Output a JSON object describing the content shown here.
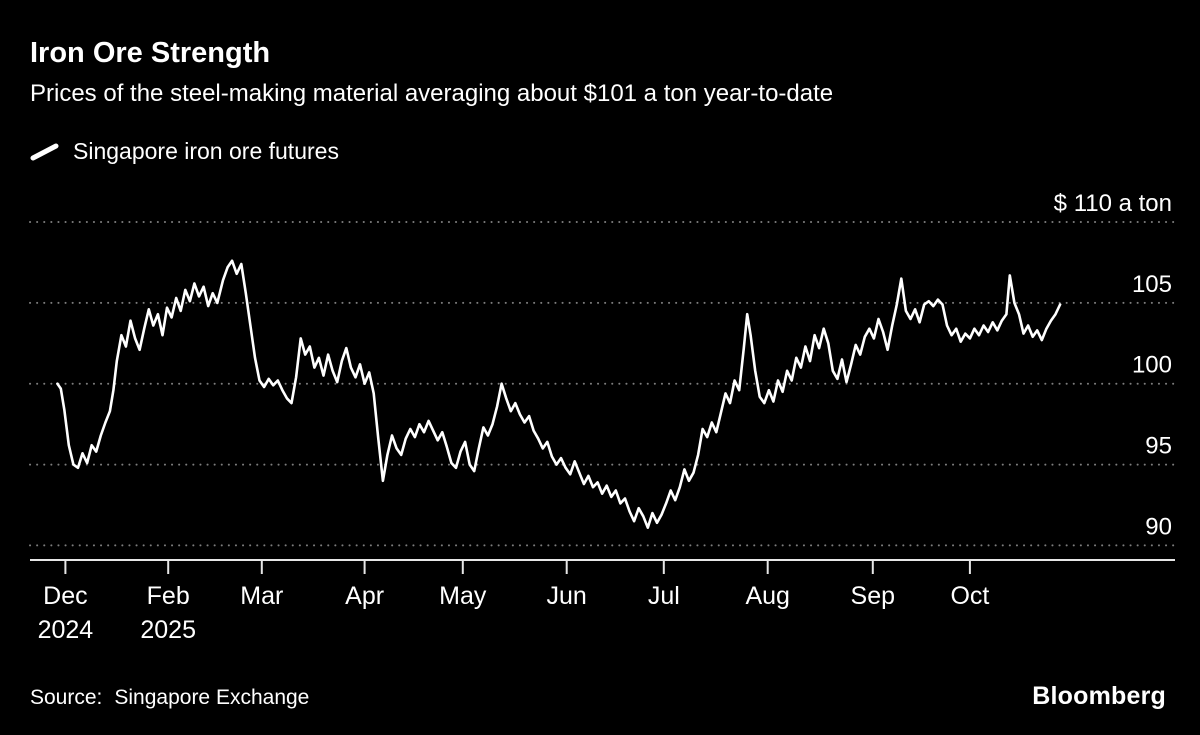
{
  "header": {
    "title": "Iron Ore Strength",
    "subtitle": "Prices of the steel-making material averaging about $101 a ton year-to-date"
  },
  "legend": {
    "series_label": "Singapore iron ore futures",
    "marker_icon": "series-line-icon",
    "line_color": "#ffffff"
  },
  "footer": {
    "source_label": "Source:",
    "source_value": "Singapore Exchange",
    "logo": "Bloomberg"
  },
  "colors": {
    "background": "#000000",
    "line": "#ffffff",
    "grid": "#7d7d7d",
    "axis": "#e6e6e6",
    "text": "#ffffff"
  },
  "chart_data": {
    "type": "line",
    "title": "Iron Ore Strength",
    "subtitle": "Prices of the steel-making material averaging about $101 a ton year-to-date",
    "y_unit": "USD per ton",
    "x_unit": "time, Dec 2024 through late Oct 2025 (t = fraction of plot width)",
    "grid": "horizontal-dotted",
    "legend_position": "top-left",
    "ylim": [
      89.1,
      110
    ],
    "yticks": [
      {
        "value": 110,
        "label": "$ 110 a ton"
      },
      {
        "value": 105,
        "label": "105"
      },
      {
        "value": 100,
        "label": "100"
      },
      {
        "value": 95,
        "label": "95"
      },
      {
        "value": 90,
        "label": "90"
      }
    ],
    "xticks": [
      {
        "t": 0.031,
        "label": "Dec",
        "sublabel": "2024"
      },
      {
        "t": 0.121,
        "label": "Feb",
        "sublabel": "2025"
      },
      {
        "t": 0.203,
        "label": "Mar"
      },
      {
        "t": 0.293,
        "label": "Apr"
      },
      {
        "t": 0.379,
        "label": "May"
      },
      {
        "t": 0.47,
        "label": "Jun"
      },
      {
        "t": 0.555,
        "label": "Jul"
      },
      {
        "t": 0.646,
        "label": "Aug"
      },
      {
        "t": 0.738,
        "label": "Sep"
      },
      {
        "t": 0.823,
        "label": "Oct"
      }
    ],
    "series": [
      {
        "name": "Singapore iron ore futures",
        "color": "#ffffff",
        "points": [
          [
            0.024,
            100.0
          ],
          [
            0.027,
            99.7
          ],
          [
            0.03,
            98.4
          ],
          [
            0.034,
            96.2
          ],
          [
            0.038,
            95.0
          ],
          [
            0.042,
            94.8
          ],
          [
            0.046,
            95.7
          ],
          [
            0.05,
            95.1
          ],
          [
            0.054,
            96.2
          ],
          [
            0.058,
            95.8
          ],
          [
            0.062,
            96.8
          ],
          [
            0.066,
            97.6
          ],
          [
            0.07,
            98.3
          ],
          [
            0.073,
            99.6
          ],
          [
            0.076,
            101.4
          ],
          [
            0.08,
            103.0
          ],
          [
            0.084,
            102.3
          ],
          [
            0.088,
            103.9
          ],
          [
            0.092,
            102.8
          ],
          [
            0.096,
            102.1
          ],
          [
            0.1,
            103.4
          ],
          [
            0.104,
            104.6
          ],
          [
            0.108,
            103.6
          ],
          [
            0.112,
            104.3
          ],
          [
            0.116,
            103.0
          ],
          [
            0.12,
            104.7
          ],
          [
            0.124,
            104.1
          ],
          [
            0.128,
            105.3
          ],
          [
            0.132,
            104.5
          ],
          [
            0.136,
            105.8
          ],
          [
            0.14,
            105.1
          ],
          [
            0.144,
            106.2
          ],
          [
            0.148,
            105.4
          ],
          [
            0.152,
            106.0
          ],
          [
            0.156,
            104.8
          ],
          [
            0.16,
            105.6
          ],
          [
            0.164,
            105.0
          ],
          [
            0.169,
            106.4
          ],
          [
            0.173,
            107.2
          ],
          [
            0.177,
            107.6
          ],
          [
            0.181,
            106.8
          ],
          [
            0.185,
            107.4
          ],
          [
            0.189,
            105.6
          ],
          [
            0.193,
            103.6
          ],
          [
            0.197,
            101.6
          ],
          [
            0.201,
            100.2
          ],
          [
            0.205,
            99.8
          ],
          [
            0.209,
            100.3
          ],
          [
            0.213,
            99.9
          ],
          [
            0.217,
            100.2
          ],
          [
            0.221,
            99.6
          ],
          [
            0.225,
            99.1
          ],
          [
            0.229,
            98.8
          ],
          [
            0.233,
            100.4
          ],
          [
            0.237,
            102.8
          ],
          [
            0.241,
            101.8
          ],
          [
            0.245,
            102.3
          ],
          [
            0.249,
            101.0
          ],
          [
            0.253,
            101.6
          ],
          [
            0.257,
            100.5
          ],
          [
            0.261,
            101.8
          ],
          [
            0.265,
            100.8
          ],
          [
            0.269,
            100.1
          ],
          [
            0.273,
            101.4
          ],
          [
            0.277,
            102.2
          ],
          [
            0.281,
            101.0
          ],
          [
            0.285,
            100.4
          ],
          [
            0.289,
            101.2
          ],
          [
            0.293,
            100.0
          ],
          [
            0.297,
            100.7
          ],
          [
            0.301,
            99.4
          ],
          [
            0.305,
            96.6
          ],
          [
            0.309,
            94.0
          ],
          [
            0.313,
            95.6
          ],
          [
            0.317,
            96.8
          ],
          [
            0.321,
            96.0
          ],
          [
            0.325,
            95.6
          ],
          [
            0.329,
            96.6
          ],
          [
            0.333,
            97.2
          ],
          [
            0.337,
            96.7
          ],
          [
            0.341,
            97.5
          ],
          [
            0.345,
            97.0
          ],
          [
            0.349,
            97.7
          ],
          [
            0.353,
            97.1
          ],
          [
            0.357,
            96.5
          ],
          [
            0.361,
            97.0
          ],
          [
            0.365,
            96.1
          ],
          [
            0.369,
            95.1
          ],
          [
            0.373,
            94.8
          ],
          [
            0.377,
            95.8
          ],
          [
            0.381,
            96.4
          ],
          [
            0.385,
            95.0
          ],
          [
            0.389,
            94.6
          ],
          [
            0.393,
            96.0
          ],
          [
            0.397,
            97.3
          ],
          [
            0.401,
            96.8
          ],
          [
            0.405,
            97.5
          ],
          [
            0.409,
            98.6
          ],
          [
            0.413,
            100.0
          ],
          [
            0.417,
            99.1
          ],
          [
            0.421,
            98.3
          ],
          [
            0.425,
            98.8
          ],
          [
            0.429,
            98.1
          ],
          [
            0.433,
            97.6
          ],
          [
            0.437,
            98.0
          ],
          [
            0.441,
            97.1
          ],
          [
            0.445,
            96.6
          ],
          [
            0.449,
            96.0
          ],
          [
            0.453,
            96.4
          ],
          [
            0.457,
            95.5
          ],
          [
            0.461,
            95.0
          ],
          [
            0.465,
            95.4
          ],
          [
            0.469,
            94.8
          ],
          [
            0.473,
            94.4
          ],
          [
            0.477,
            95.2
          ],
          [
            0.481,
            94.5
          ],
          [
            0.485,
            93.8
          ],
          [
            0.489,
            94.3
          ],
          [
            0.493,
            93.6
          ],
          [
            0.497,
            93.9
          ],
          [
            0.501,
            93.2
          ],
          [
            0.505,
            93.7
          ],
          [
            0.509,
            93.0
          ],
          [
            0.513,
            93.4
          ],
          [
            0.517,
            92.6
          ],
          [
            0.521,
            92.9
          ],
          [
            0.525,
            92.1
          ],
          [
            0.529,
            91.5
          ],
          [
            0.533,
            92.3
          ],
          [
            0.537,
            91.8
          ],
          [
            0.541,
            91.1
          ],
          [
            0.545,
            92.0
          ],
          [
            0.549,
            91.4
          ],
          [
            0.553,
            91.9
          ],
          [
            0.557,
            92.6
          ],
          [
            0.561,
            93.4
          ],
          [
            0.565,
            92.8
          ],
          [
            0.569,
            93.6
          ],
          [
            0.573,
            94.7
          ],
          [
            0.577,
            94.0
          ],
          [
            0.581,
            94.5
          ],
          [
            0.585,
            95.6
          ],
          [
            0.589,
            97.2
          ],
          [
            0.593,
            96.7
          ],
          [
            0.597,
            97.6
          ],
          [
            0.601,
            97.0
          ],
          [
            0.605,
            98.2
          ],
          [
            0.609,
            99.4
          ],
          [
            0.613,
            98.8
          ],
          [
            0.617,
            100.2
          ],
          [
            0.621,
            99.6
          ],
          [
            0.625,
            102.2
          ],
          [
            0.628,
            104.3
          ],
          [
            0.631,
            103.0
          ],
          [
            0.635,
            100.8
          ],
          [
            0.639,
            99.2
          ],
          [
            0.643,
            98.8
          ],
          [
            0.647,
            99.6
          ],
          [
            0.651,
            98.9
          ],
          [
            0.655,
            100.2
          ],
          [
            0.659,
            99.5
          ],
          [
            0.663,
            100.8
          ],
          [
            0.667,
            100.2
          ],
          [
            0.671,
            101.6
          ],
          [
            0.675,
            101.0
          ],
          [
            0.679,
            102.3
          ],
          [
            0.683,
            101.4
          ],
          [
            0.687,
            103.0
          ],
          [
            0.691,
            102.2
          ],
          [
            0.695,
            103.4
          ],
          [
            0.699,
            102.5
          ],
          [
            0.703,
            100.8
          ],
          [
            0.707,
            100.3
          ],
          [
            0.711,
            101.5
          ],
          [
            0.715,
            100.1
          ],
          [
            0.719,
            101.2
          ],
          [
            0.723,
            102.4
          ],
          [
            0.727,
            101.8
          ],
          [
            0.731,
            102.9
          ],
          [
            0.735,
            103.4
          ],
          [
            0.739,
            102.8
          ],
          [
            0.743,
            104.0
          ],
          [
            0.747,
            103.2
          ],
          [
            0.751,
            102.1
          ],
          [
            0.755,
            103.6
          ],
          [
            0.759,
            104.9
          ],
          [
            0.763,
            106.5
          ],
          [
            0.767,
            104.5
          ],
          [
            0.771,
            104.0
          ],
          [
            0.775,
            104.6
          ],
          [
            0.779,
            103.8
          ],
          [
            0.783,
            104.9
          ],
          [
            0.787,
            105.1
          ],
          [
            0.791,
            104.8
          ],
          [
            0.795,
            105.2
          ],
          [
            0.799,
            104.9
          ],
          [
            0.803,
            103.6
          ],
          [
            0.807,
            103.0
          ],
          [
            0.811,
            103.4
          ],
          [
            0.815,
            102.6
          ],
          [
            0.819,
            103.1
          ],
          [
            0.823,
            102.8
          ],
          [
            0.827,
            103.4
          ],
          [
            0.831,
            103.0
          ],
          [
            0.835,
            103.6
          ],
          [
            0.839,
            103.2
          ],
          [
            0.843,
            103.8
          ],
          [
            0.847,
            103.3
          ],
          [
            0.851,
            103.9
          ],
          [
            0.855,
            104.3
          ],
          [
            0.858,
            106.7
          ],
          [
            0.862,
            105.0
          ],
          [
            0.866,
            104.3
          ],
          [
            0.87,
            103.1
          ],
          [
            0.874,
            103.6
          ],
          [
            0.878,
            102.9
          ],
          [
            0.882,
            103.3
          ],
          [
            0.886,
            102.7
          ],
          [
            0.89,
            103.4
          ],
          [
            0.894,
            103.9
          ],
          [
            0.898,
            104.3
          ],
          [
            0.902,
            104.9
          ]
        ]
      }
    ]
  }
}
